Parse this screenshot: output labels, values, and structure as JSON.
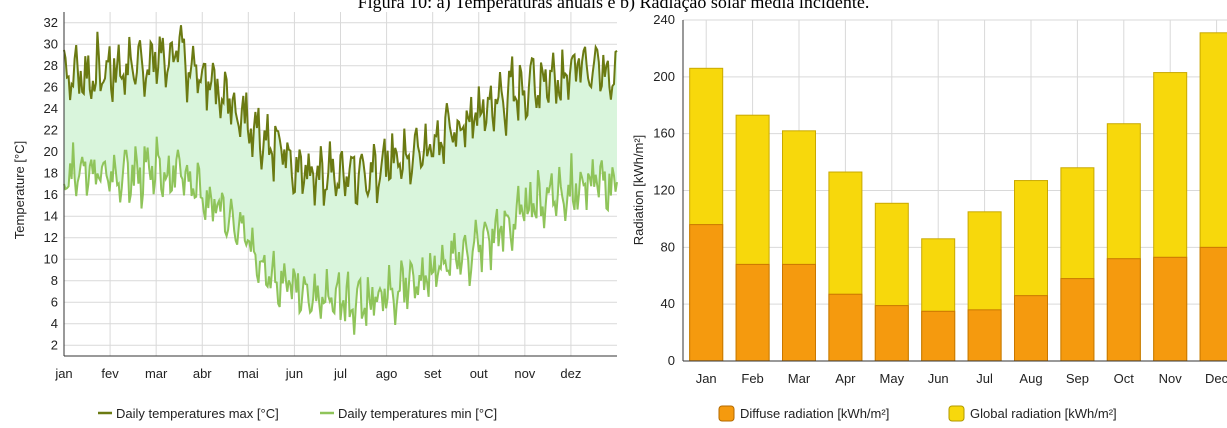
{
  "caption": "Figura 10: a) Temperaturas anuais e b) Radiação solar média incidente.",
  "chart_data": [
    {
      "type": "line",
      "ylabel": "Temperature [°C]",
      "ylim": [
        1,
        33
      ],
      "yticks": [
        2,
        4,
        6,
        8,
        10,
        12,
        14,
        16,
        18,
        20,
        22,
        24,
        26,
        28,
        30,
        32
      ],
      "x_tick_labels": [
        "jan",
        "fev",
        "mar",
        "abr",
        "mai",
        "jun",
        "jul",
        "ago",
        "set",
        "out",
        "nov",
        "dez"
      ],
      "grid": true,
      "legend": "bottom",
      "series": [
        {
          "name": "Daily temperatures max [°C]",
          "color": "#6b7a12",
          "monthly_values": [
            27,
            28,
            29,
            25,
            21,
            17,
            18,
            20,
            22,
            25,
            27,
            28
          ]
        },
        {
          "name": "Daily temperatures min [°C]",
          "color": "#8fc45a",
          "monthly_values": [
            18,
            18,
            18,
            14,
            9,
            6,
            6,
            8,
            10,
            13,
            16,
            17
          ]
        }
      ],
      "fill_between_color": "#d9f5dc"
    },
    {
      "type": "bar",
      "ylabel": "Radiation [kWh/m²]",
      "ylim": [
        0,
        240
      ],
      "yticks": [
        0,
        40,
        80,
        120,
        160,
        200,
        240
      ],
      "categories": [
        "Jan",
        "Feb",
        "Mar",
        "Apr",
        "May",
        "Jun",
        "Jul",
        "Aug",
        "Sep",
        "Oct",
        "Nov",
        "Dec"
      ],
      "grid": true,
      "legend": "bottom",
      "series": [
        {
          "name": "Diffuse radiation [kWh/m²]",
          "color": "#f59a0e",
          "values": [
            96,
            68,
            68,
            47,
            39,
            35,
            36,
            46,
            58,
            72,
            73,
            80
          ]
        },
        {
          "name": "Global radiation [kWh/m²]",
          "color": "#f7d80c",
          "values": [
            206,
            173,
            162,
            133,
            111,
            86,
            105,
            127,
            136,
            167,
            203,
            231
          ]
        }
      ]
    }
  ]
}
